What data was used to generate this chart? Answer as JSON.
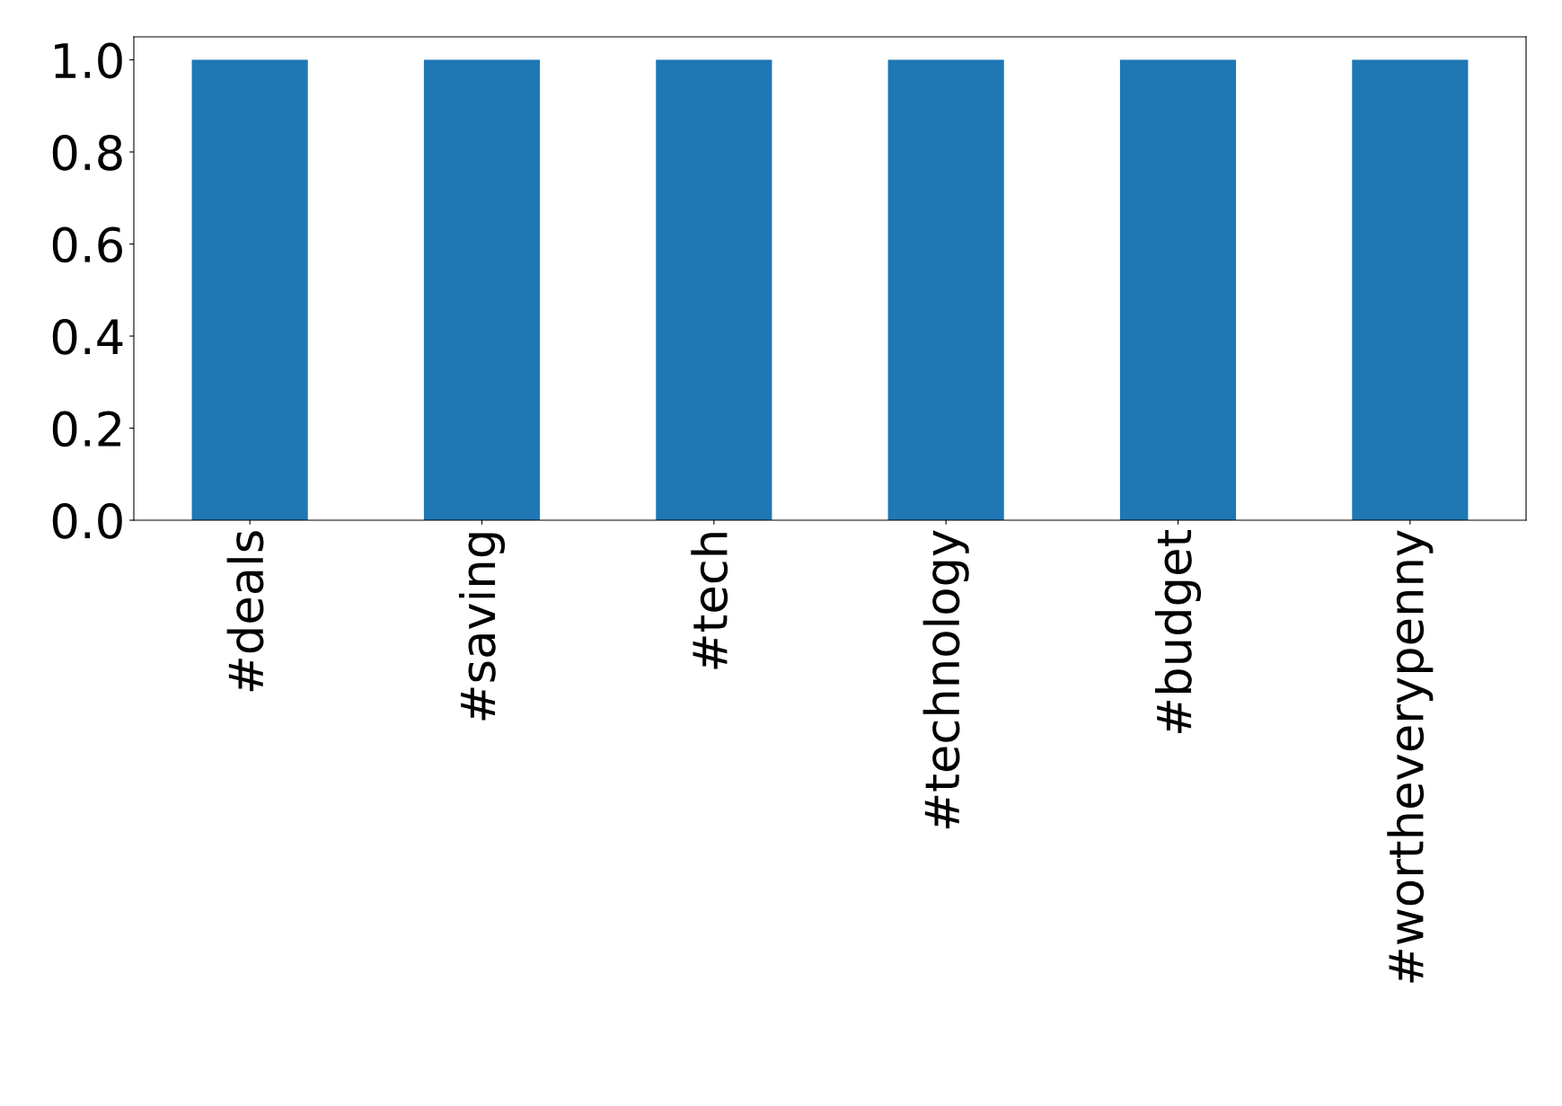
{
  "chart_data": {
    "type": "bar",
    "categories": [
      "#deals",
      "#saving",
      "#tech",
      "#technology",
      "#budget",
      "#wortheverypenny"
    ],
    "values": [
      1,
      1,
      1,
      1,
      1,
      1
    ],
    "color": "#1f77b4",
    "ylim": [
      0,
      1.05
    ],
    "yticks": [
      {
        "value": 0,
        "label": "0.0"
      },
      {
        "value": 0.2,
        "label": "0.2"
      },
      {
        "value": 0.4,
        "label": "0.4"
      },
      {
        "value": 0.6,
        "label": "0.6"
      },
      {
        "value": 0.8,
        "label": "0.8"
      },
      {
        "value": 1,
        "label": "1.0"
      }
    ],
    "grid": false,
    "legend": false
  }
}
